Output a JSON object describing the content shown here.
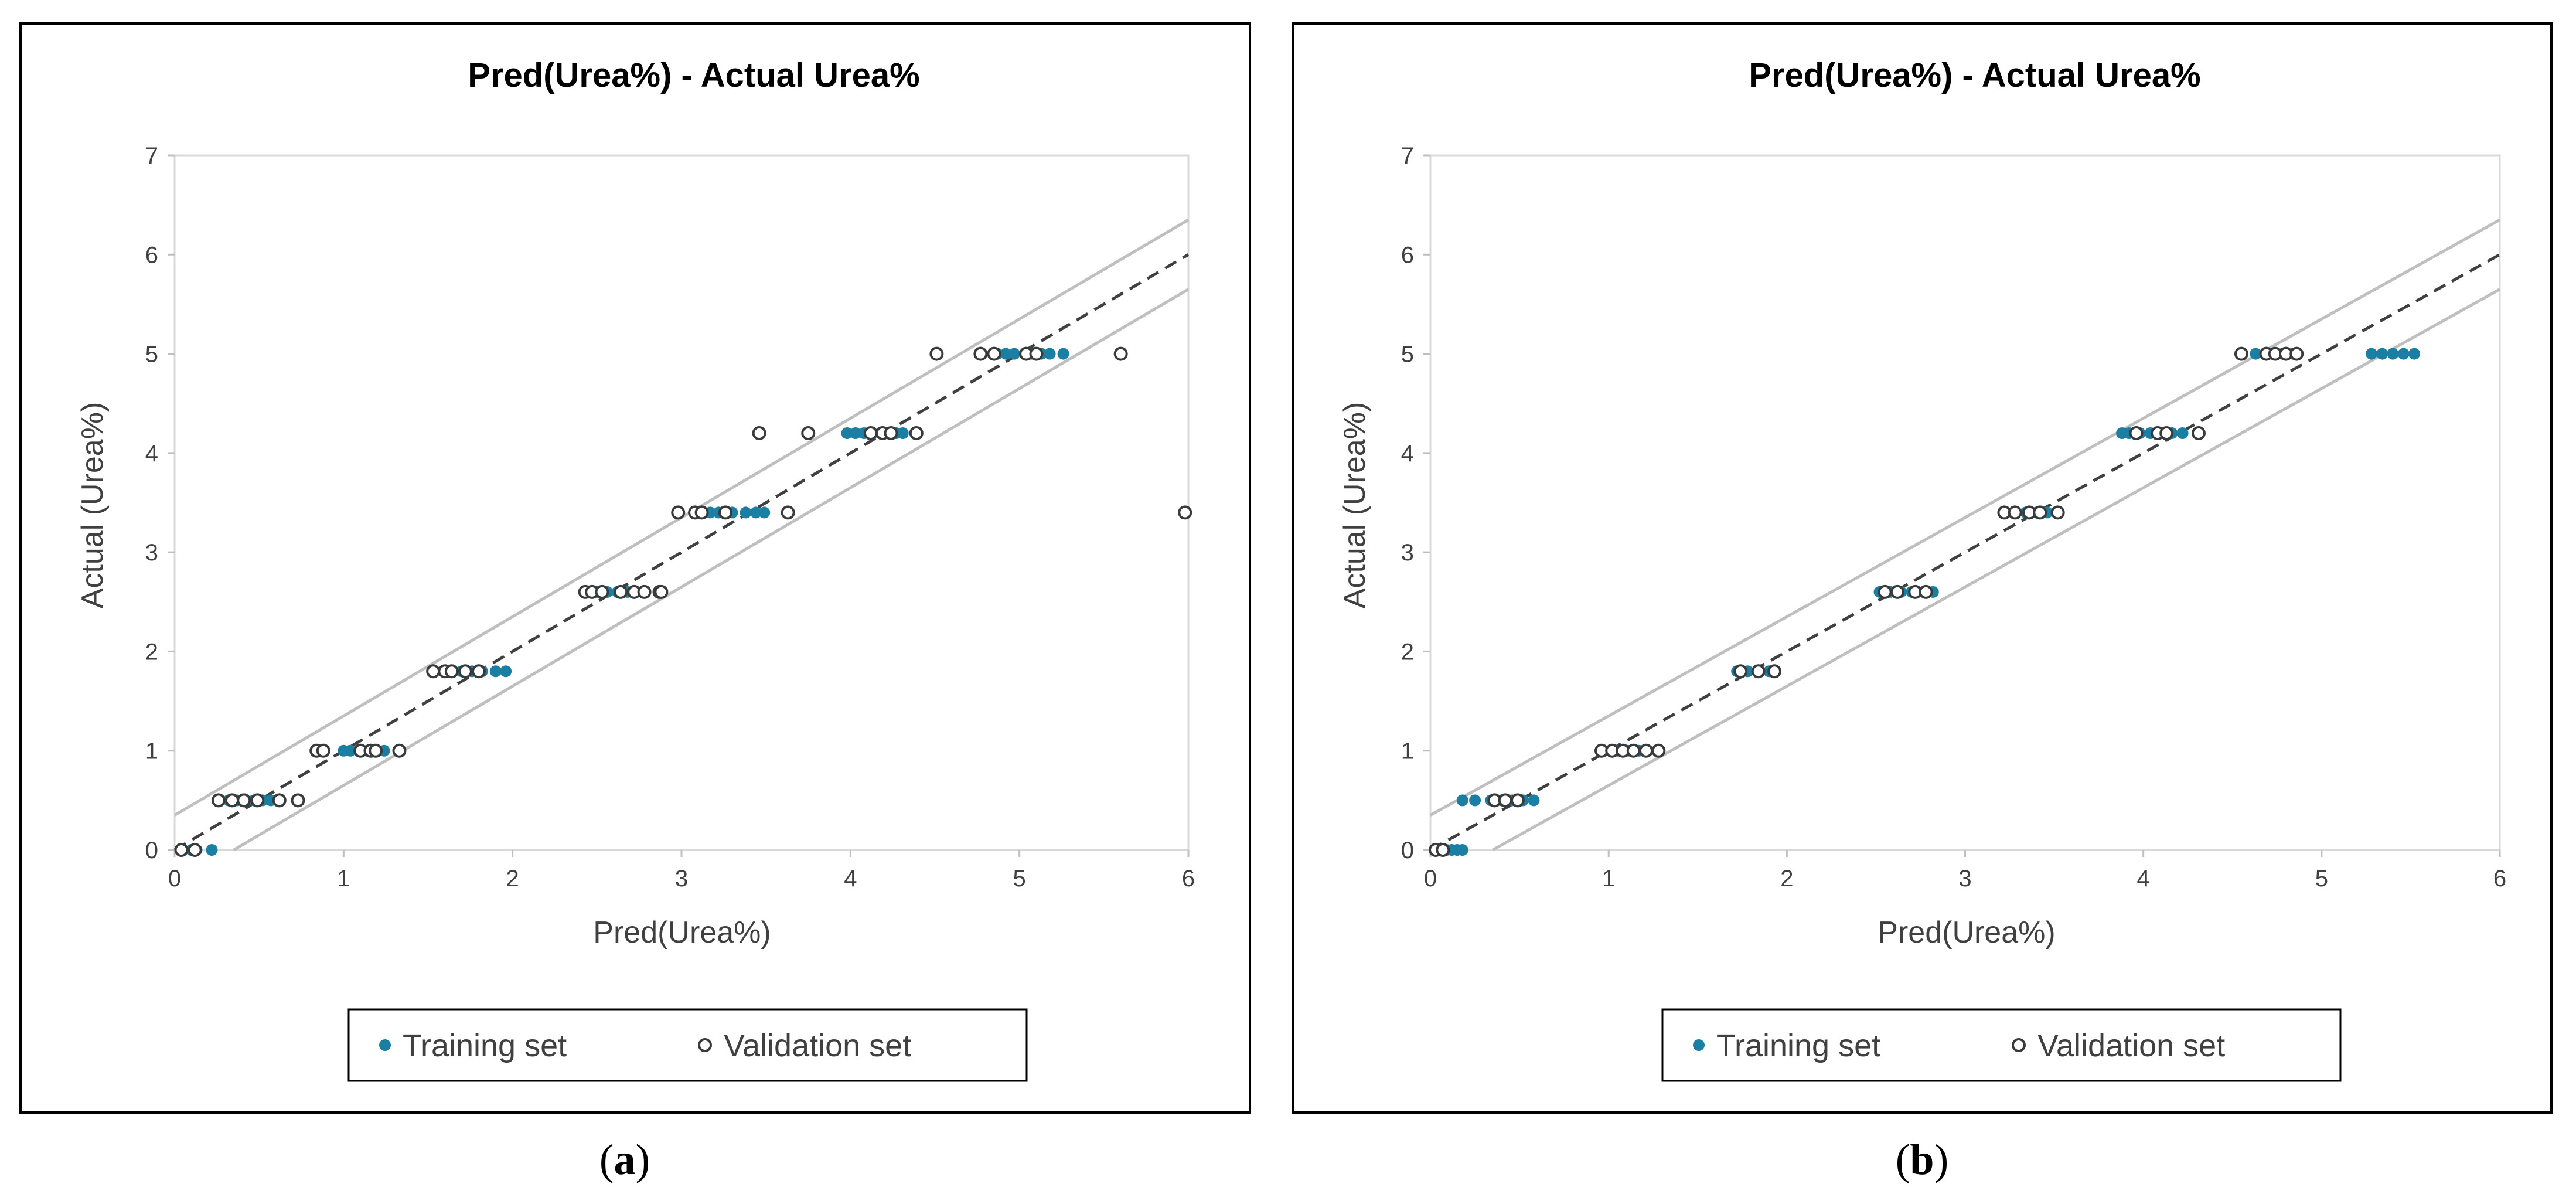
{
  "figure": {
    "sub_labels": [
      "a",
      "b"
    ]
  },
  "colors": {
    "training": "#1a7fa3",
    "validation_edge": "#3a3a3a",
    "reference_band": "#bfbfbf",
    "fit_line": "#404040"
  },
  "chart_data": [
    {
      "type": "scatter",
      "panel": "a",
      "title": "Pred(Urea%) - Actual Urea%",
      "xlabel": "Pred(Urea%)",
      "ylabel": "Actual (Urea%)",
      "xlim": [
        0,
        6
      ],
      "ylim": [
        0,
        7
      ],
      "xticks": [
        "0",
        "1",
        "2",
        "3",
        "4",
        "5",
        "6"
      ],
      "yticks": [
        "0",
        "1",
        "2",
        "3",
        "4",
        "5",
        "6",
        "7"
      ],
      "legend": {
        "position": "bottom",
        "training_label": "Training set",
        "validation_label": "Validation set"
      },
      "reference_lines": {
        "diagonal": [
          [
            0,
            0
          ],
          [
            6,
            6
          ]
        ],
        "upper": [
          [
            0,
            0.35
          ],
          [
            6,
            6.35
          ]
        ],
        "lower": [
          [
            0.35,
            0
          ],
          [
            6,
            5.65
          ]
        ]
      },
      "series": [
        {
          "name": "Training set",
          "points": [
            [
              0.05,
              0
            ],
            [
              0.1,
              0
            ],
            [
              0.13,
              0
            ],
            [
              0.22,
              0
            ],
            [
              0.32,
              0.5
            ],
            [
              0.37,
              0.5
            ],
            [
              0.42,
              0.5
            ],
            [
              0.47,
              0.5
            ],
            [
              0.52,
              0.5
            ],
            [
              0.57,
              0.5
            ],
            [
              1.0,
              1.0
            ],
            [
              1.04,
              1.0
            ],
            [
              1.09,
              1.0
            ],
            [
              1.14,
              1.0
            ],
            [
              1.2,
              1.0
            ],
            [
              1.24,
              1.0
            ],
            [
              1.65,
              1.8
            ],
            [
              1.7,
              1.8
            ],
            [
              1.76,
              1.8
            ],
            [
              1.82,
              1.8
            ],
            [
              1.9,
              1.8
            ],
            [
              1.96,
              1.8
            ],
            [
              2.5,
              2.6
            ],
            [
              2.56,
              2.6
            ],
            [
              2.62,
              2.6
            ],
            [
              2.68,
              2.6
            ],
            [
              2.78,
              2.6
            ],
            [
              3.17,
              3.4
            ],
            [
              3.22,
              3.4
            ],
            [
              3.3,
              3.4
            ],
            [
              3.38,
              3.4
            ],
            [
              3.44,
              3.4
            ],
            [
              3.49,
              3.4
            ],
            [
              3.98,
              4.2
            ],
            [
              4.03,
              4.2
            ],
            [
              4.08,
              4.2
            ],
            [
              4.13,
              4.2
            ],
            [
              4.2,
              4.2
            ],
            [
              4.27,
              4.2
            ],
            [
              4.31,
              4.2
            ],
            [
              4.87,
              5.0
            ],
            [
              4.92,
              5.0
            ],
            [
              4.97,
              5.0
            ],
            [
              5.07,
              5.0
            ],
            [
              5.13,
              5.0
            ],
            [
              5.18,
              5.0
            ],
            [
              5.26,
              5.0
            ]
          ]
        },
        {
          "name": "Validation set",
          "points": [
            [
              0.04,
              0
            ],
            [
              0.12,
              0
            ],
            [
              0.26,
              0.5
            ],
            [
              0.34,
              0.5
            ],
            [
              0.41,
              0.5
            ],
            [
              0.49,
              0.5
            ],
            [
              0.62,
              0.5
            ],
            [
              0.73,
              0.5
            ],
            [
              0.84,
              1.0
            ],
            [
              0.88,
              1.0
            ],
            [
              1.1,
              1.0
            ],
            [
              1.16,
              1.0
            ],
            [
              1.19,
              1.0
            ],
            [
              1.33,
              1.0
            ],
            [
              1.53,
              1.8
            ],
            [
              1.6,
              1.8
            ],
            [
              1.64,
              1.8
            ],
            [
              1.72,
              1.8
            ],
            [
              1.8,
              1.8
            ],
            [
              2.43,
              2.6
            ],
            [
              2.47,
              2.6
            ],
            [
              2.53,
              2.6
            ],
            [
              2.64,
              2.6
            ],
            [
              2.72,
              2.6
            ],
            [
              2.78,
              2.6
            ],
            [
              2.87,
              2.6
            ],
            [
              2.88,
              2.6
            ],
            [
              2.98,
              3.4
            ],
            [
              3.08,
              3.4
            ],
            [
              3.12,
              3.4
            ],
            [
              3.26,
              3.4
            ],
            [
              3.63,
              3.4
            ],
            [
              5.98,
              3.4
            ],
            [
              3.46,
              4.2
            ],
            [
              3.75,
              4.2
            ],
            [
              4.12,
              4.2
            ],
            [
              4.19,
              4.2
            ],
            [
              4.24,
              4.2
            ],
            [
              4.39,
              4.2
            ],
            [
              4.51,
              5.0
            ],
            [
              4.77,
              5.0
            ],
            [
              4.85,
              5.0
            ],
            [
              5.04,
              5.0
            ],
            [
              5.1,
              5.0
            ],
            [
              5.6,
              5.0
            ]
          ]
        }
      ]
    },
    {
      "type": "scatter",
      "panel": "b",
      "title": "Pred(Urea%) - Actual Urea%",
      "xlabel": "Pred(Urea%)",
      "ylabel": "Actual (Urea%)",
      "xlim": [
        0,
        6
      ],
      "ylim": [
        0,
        7
      ],
      "xticks": [
        "0",
        "1",
        "2",
        "3",
        "4",
        "5",
        "6"
      ],
      "yticks": [
        "0",
        "1",
        "2",
        "3",
        "4",
        "5",
        "6",
        "7"
      ],
      "legend": {
        "position": "bottom",
        "training_label": "Training set",
        "validation_label": "Validation set"
      },
      "reference_lines": {
        "diagonal": [
          [
            0,
            0
          ],
          [
            6,
            6
          ]
        ],
        "upper": [
          [
            0,
            0.35
          ],
          [
            6,
            6.35
          ]
        ],
        "lower": [
          [
            0.35,
            0
          ],
          [
            6,
            5.65
          ]
        ]
      },
      "series": [
        {
          "name": "Training set",
          "points": [
            [
              0.09,
              0
            ],
            [
              0.12,
              0
            ],
            [
              0.15,
              0
            ],
            [
              0.18,
              0
            ],
            [
              0.18,
              0.5
            ],
            [
              0.25,
              0.5
            ],
            [
              0.34,
              0.5
            ],
            [
              0.4,
              0.5
            ],
            [
              0.46,
              0.5
            ],
            [
              0.52,
              0.5
            ],
            [
              0.58,
              0.5
            ],
            [
              1.05,
              1.0
            ],
            [
              1.11,
              1.0
            ],
            [
              1.17,
              1.0
            ],
            [
              1.22,
              1.0
            ],
            [
              1.72,
              1.8
            ],
            [
              1.78,
              1.8
            ],
            [
              1.84,
              1.8
            ],
            [
              1.9,
              1.8
            ],
            [
              2.52,
              2.6
            ],
            [
              2.58,
              2.6
            ],
            [
              2.64,
              2.6
            ],
            [
              2.7,
              2.6
            ],
            [
              2.82,
              2.6
            ],
            [
              3.28,
              3.4
            ],
            [
              3.34,
              3.4
            ],
            [
              3.4,
              3.4
            ],
            [
              3.46,
              3.4
            ],
            [
              3.88,
              4.2
            ],
            [
              3.92,
              4.2
            ],
            [
              3.98,
              4.2
            ],
            [
              4.04,
              4.2
            ],
            [
              4.1,
              4.2
            ],
            [
              4.16,
              4.2
            ],
            [
              4.22,
              4.2
            ],
            [
              4.63,
              5.0
            ],
            [
              4.73,
              5.0
            ],
            [
              4.78,
              5.0
            ],
            [
              4.84,
              5.0
            ],
            [
              5.28,
              5.0
            ],
            [
              5.34,
              5.0
            ],
            [
              5.4,
              5.0
            ],
            [
              5.46,
              5.0
            ],
            [
              5.52,
              5.0
            ]
          ]
        },
        {
          "name": "Validation set",
          "points": [
            [
              0.03,
              0
            ],
            [
              0.07,
              0
            ],
            [
              0.36,
              0.5
            ],
            [
              0.42,
              0.5
            ],
            [
              0.49,
              0.5
            ],
            [
              0.96,
              1.0
            ],
            [
              1.02,
              1.0
            ],
            [
              1.08,
              1.0
            ],
            [
              1.14,
              1.0
            ],
            [
              1.21,
              1.0
            ],
            [
              1.28,
              1.0
            ],
            [
              1.74,
              1.8
            ],
            [
              1.84,
              1.8
            ],
            [
              1.93,
              1.8
            ],
            [
              2.55,
              2.6
            ],
            [
              2.62,
              2.6
            ],
            [
              2.72,
              2.6
            ],
            [
              2.78,
              2.6
            ],
            [
              3.22,
              3.4
            ],
            [
              3.28,
              3.4
            ],
            [
              3.36,
              3.4
            ],
            [
              3.42,
              3.4
            ],
            [
              3.52,
              3.4
            ],
            [
              3.96,
              4.2
            ],
            [
              4.08,
              4.2
            ],
            [
              4.13,
              4.2
            ],
            [
              4.31,
              4.2
            ],
            [
              4.55,
              5.0
            ],
            [
              4.69,
              5.0
            ],
            [
              4.74,
              5.0
            ],
            [
              4.8,
              5.0
            ],
            [
              4.86,
              5.0
            ]
          ]
        }
      ]
    }
  ]
}
